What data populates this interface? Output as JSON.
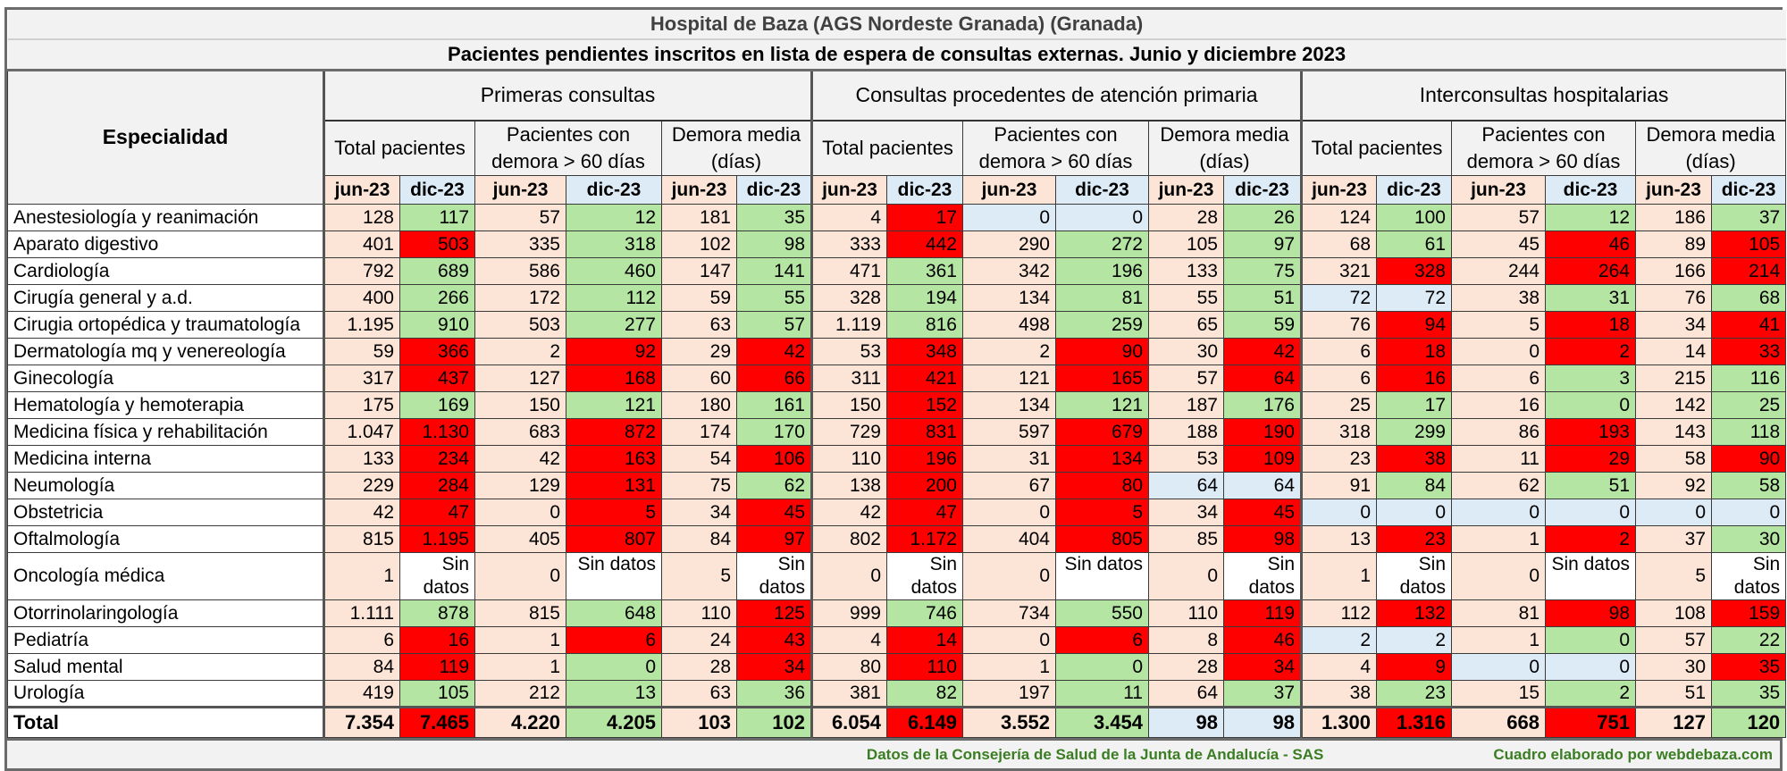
{
  "title": "Hospital de Baza (AGS Nordeste Granada) (Granada)",
  "subtitle": "Pacientes pendientes inscritos en lista de espera de consultas externas. Junio y diciembre 2023",
  "header": {
    "specialty": "Especialidad",
    "groups": [
      "Primeras consultas",
      "Consultas procedentes de atención primaria",
      "Interconsultas hospitalarias"
    ],
    "metrics": [
      "Total pacientes",
      "Pacientes con demora > 60 días",
      "Demora media (días)"
    ],
    "months": [
      "jun-23",
      "dic-23"
    ]
  },
  "colors": {
    "jun": "#fce4d6",
    "increase": "#ff0000",
    "decrease": "#b4e5a2",
    "equal": "#ddebf7",
    "no_data": "#ffffff",
    "footer_text": "#3a7d22"
  },
  "rows": [
    {
      "name": "Anestesiología y reanimación",
      "values": [
        "128",
        "117",
        "57",
        "12",
        "181",
        "35",
        "4",
        "17",
        "0",
        "0",
        "28",
        "26",
        "124",
        "100",
        "57",
        "12",
        "186",
        "37"
      ]
    },
    {
      "name": "Aparato digestivo",
      "values": [
        "401",
        "503",
        "335",
        "318",
        "102",
        "98",
        "333",
        "442",
        "290",
        "272",
        "105",
        "97",
        "68",
        "61",
        "45",
        "46",
        "89",
        "105"
      ]
    },
    {
      "name": "Cardiología",
      "values": [
        "792",
        "689",
        "586",
        "460",
        "147",
        "141",
        "471",
        "361",
        "342",
        "196",
        "133",
        "75",
        "321",
        "328",
        "244",
        "264",
        "166",
        "214"
      ]
    },
    {
      "name": "Cirugía general y a.d.",
      "values": [
        "400",
        "266",
        "172",
        "112",
        "59",
        "55",
        "328",
        "194",
        "134",
        "81",
        "55",
        "51",
        "72",
        "72",
        "38",
        "31",
        "76",
        "68"
      ]
    },
    {
      "name": "Cirugia ortopédica y traumatología",
      "values": [
        "1.195",
        "910",
        "503",
        "277",
        "63",
        "57",
        "1.119",
        "816",
        "498",
        "259",
        "65",
        "59",
        "76",
        "94",
        "5",
        "18",
        "34",
        "41"
      ]
    },
    {
      "name": "Dermatología mq y venereología",
      "values": [
        "59",
        "366",
        "2",
        "92",
        "29",
        "42",
        "53",
        "348",
        "2",
        "90",
        "30",
        "42",
        "6",
        "18",
        "0",
        "2",
        "14",
        "33"
      ]
    },
    {
      "name": "Ginecología",
      "values": [
        "317",
        "437",
        "127",
        "168",
        "60",
        "66",
        "311",
        "421",
        "121",
        "165",
        "57",
        "64",
        "6",
        "16",
        "6",
        "3",
        "215",
        "116"
      ]
    },
    {
      "name": "Hematología y hemoterapia",
      "values": [
        "175",
        "169",
        "150",
        "121",
        "180",
        "161",
        "150",
        "152",
        "134",
        "121",
        "187",
        "176",
        "25",
        "17",
        "16",
        "0",
        "142",
        "25"
      ]
    },
    {
      "name": "Medicina física y rehabilitación",
      "values": [
        "1.047",
        "1.130",
        "683",
        "872",
        "174",
        "170",
        "729",
        "831",
        "597",
        "679",
        "188",
        "190",
        "318",
        "299",
        "86",
        "193",
        "143",
        "118"
      ]
    },
    {
      "name": "Medicina interna",
      "values": [
        "133",
        "234",
        "42",
        "163",
        "54",
        "106",
        "110",
        "196",
        "31",
        "134",
        "53",
        "109",
        "23",
        "38",
        "11",
        "29",
        "58",
        "90"
      ]
    },
    {
      "name": "Neumología",
      "values": [
        "229",
        "284",
        "129",
        "131",
        "75",
        "62",
        "138",
        "200",
        "67",
        "80",
        "64",
        "64",
        "91",
        "84",
        "62",
        "51",
        "92",
        "58"
      ]
    },
    {
      "name": "Obstetricia",
      "values": [
        "42",
        "47",
        "0",
        "5",
        "34",
        "45",
        "42",
        "47",
        "0",
        "5",
        "34",
        "45",
        "0",
        "0",
        "0",
        "0",
        "0",
        "0"
      ]
    },
    {
      "name": "Oftalmología",
      "values": [
        "815",
        "1.195",
        "405",
        "807",
        "84",
        "97",
        "802",
        "1.172",
        "404",
        "805",
        "85",
        "98",
        "13",
        "23",
        "1",
        "2",
        "37",
        "30"
      ]
    },
    {
      "name": "Oncología médica",
      "values": [
        "1",
        "Sin datos",
        "0",
        "Sin datos",
        "5",
        "Sin datos",
        "0",
        "Sin datos",
        "0",
        "Sin datos",
        "0",
        "Sin datos",
        "1",
        "Sin datos",
        "0",
        "Sin datos",
        "5",
        "Sin datos"
      ]
    },
    {
      "name": "Otorrinolaringología",
      "values": [
        "1.111",
        "878",
        "815",
        "648",
        "110",
        "125",
        "999",
        "746",
        "734",
        "550",
        "110",
        "119",
        "112",
        "132",
        "81",
        "98",
        "108",
        "159"
      ]
    },
    {
      "name": "Pediatría",
      "values": [
        "6",
        "16",
        "1",
        "6",
        "24",
        "43",
        "4",
        "14",
        "0",
        "6",
        "8",
        "46",
        "2",
        "2",
        "1",
        "0",
        "57",
        "22"
      ]
    },
    {
      "name": "Salud mental",
      "values": [
        "84",
        "119",
        "1",
        "0",
        "28",
        "34",
        "80",
        "110",
        "1",
        "0",
        "28",
        "34",
        "4",
        "9",
        "0",
        "0",
        "30",
        "35"
      ]
    },
    {
      "name": "Urología",
      "values": [
        "419",
        "105",
        "212",
        "13",
        "63",
        "36",
        "381",
        "82",
        "197",
        "11",
        "64",
        "37",
        "38",
        "23",
        "15",
        "2",
        "51",
        "35"
      ]
    }
  ],
  "total": {
    "name": "Total",
    "values": [
      "7.354",
      "7.465",
      "4.220",
      "4.205",
      "103",
      "102",
      "6.054",
      "6.149",
      "3.552",
      "3.454",
      "98",
      "98",
      "1.300",
      "1.316",
      "668",
      "751",
      "127",
      "120"
    ]
  },
  "footer": {
    "source": "Datos de la Consejería de Salud de  la Junta de Andalucía - SAS",
    "credit": "Cuadro elaborado por webdebaza.com"
  }
}
